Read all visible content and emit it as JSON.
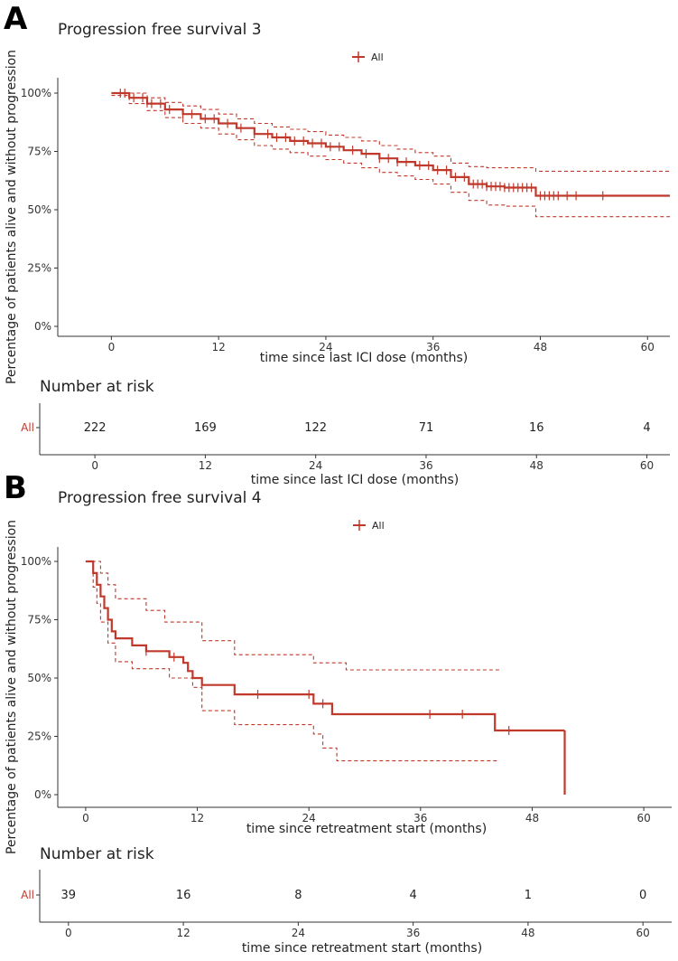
{
  "panels": {
    "a": {
      "letter": "A"
    },
    "b": {
      "letter": "B"
    }
  },
  "colors": {
    "curve": "#c0392b",
    "axis": "#333333"
  },
  "chart_data": [
    {
      "type": "line",
      "panel": "A",
      "title": "Progression free survival 3",
      "legend": [
        "All"
      ],
      "xlabel": "time since last ICI dose (months)",
      "ylabel": "Percentage of patients alive and without progression",
      "xlim": [
        -6,
        62.5
      ],
      "ylim": [
        0,
        1
      ],
      "xticks": [
        0,
        12,
        24,
        36,
        48,
        60
      ],
      "yticks": [
        0,
        0.25,
        0.5,
        0.75,
        1.0
      ],
      "ytick_labels": [
        "0%",
        "25%",
        "50%",
        "75%",
        "100%"
      ],
      "series": [
        {
          "name": "All",
          "role": "estimate",
          "x": [
            0,
            2,
            4,
            6,
            8,
            10,
            12,
            14,
            16,
            18,
            20,
            22,
            24,
            26,
            28,
            30,
            32,
            34,
            36,
            38,
            40,
            42,
            44,
            46,
            47.5,
            50,
            55,
            62.5
          ],
          "y": [
            1.0,
            0.98,
            0.955,
            0.93,
            0.91,
            0.89,
            0.87,
            0.85,
            0.825,
            0.81,
            0.795,
            0.785,
            0.77,
            0.755,
            0.74,
            0.72,
            0.705,
            0.69,
            0.67,
            0.64,
            0.61,
            0.6,
            0.595,
            0.595,
            0.56,
            0.56,
            0.56,
            0.56
          ]
        },
        {
          "name": "All upper 95% CI",
          "role": "upper",
          "x": [
            0,
            2,
            4,
            6,
            8,
            10,
            12,
            14,
            16,
            18,
            20,
            22,
            24,
            26,
            28,
            30,
            32,
            34,
            36,
            38,
            40,
            42,
            44,
            46,
            47.5,
            50,
            55,
            62.5
          ],
          "y": [
            1.0,
            1.0,
            0.98,
            0.96,
            0.945,
            0.93,
            0.91,
            0.89,
            0.87,
            0.855,
            0.845,
            0.835,
            0.82,
            0.81,
            0.795,
            0.775,
            0.76,
            0.745,
            0.73,
            0.7,
            0.685,
            0.68,
            0.68,
            0.68,
            0.665,
            0.665,
            0.665,
            0.665
          ]
        },
        {
          "name": "All lower 95% CI",
          "role": "lower",
          "x": [
            0,
            2,
            4,
            6,
            8,
            10,
            12,
            14,
            16,
            18,
            20,
            22,
            24,
            26,
            28,
            30,
            32,
            34,
            36,
            38,
            40,
            42,
            44,
            46,
            47.5,
            50,
            55,
            62.5
          ],
          "y": [
            0.99,
            0.955,
            0.925,
            0.895,
            0.87,
            0.85,
            0.825,
            0.8,
            0.775,
            0.76,
            0.745,
            0.73,
            0.715,
            0.7,
            0.68,
            0.66,
            0.645,
            0.63,
            0.61,
            0.575,
            0.54,
            0.52,
            0.515,
            0.515,
            0.47,
            0.47,
            0.47,
            0.47
          ]
        }
      ],
      "censor_times": [
        1,
        1.5,
        2.5,
        3.5,
        4.5,
        5.5,
        6.5,
        8,
        9,
        10.5,
        11.5,
        13,
        14.5,
        16,
        17.5,
        18.5,
        19.5,
        20.5,
        21.5,
        22.5,
        23.5,
        24.5,
        25.5,
        27,
        28.5,
        30,
        31,
        32,
        33,
        34.5,
        35.5,
        36.5,
        37.5,
        38.5,
        39.5,
        40.5,
        41,
        41.5,
        42,
        42.5,
        43,
        43.5,
        44,
        44.5,
        45,
        45.5,
        46,
        46.5,
        47,
        48,
        48.5,
        49,
        49.5,
        50,
        51,
        52,
        55
      ],
      "risk_table": {
        "title": "Number at risk",
        "strata": [
          "All"
        ],
        "times": [
          0,
          12,
          24,
          36,
          48,
          60
        ],
        "counts": [
          222,
          169,
          122,
          71,
          16,
          4
        ],
        "xlabel": "time since last ICI dose (months)"
      }
    },
    {
      "type": "line",
      "panel": "B",
      "title": "Progression free survival 4",
      "legend": [
        "All"
      ],
      "xlabel": "time since retreatment start (months)",
      "ylabel": "Percentage of patients alive and without progression",
      "xlim": [
        -3,
        63
      ],
      "ylim": [
        0,
        1
      ],
      "xticks": [
        0,
        12,
        24,
        36,
        48,
        60
      ],
      "yticks": [
        0,
        0.25,
        0.5,
        0.75,
        1.0
      ],
      "ytick_labels": [
        "0%",
        "25%",
        "50%",
        "75%",
        "100%"
      ],
      "series": [
        {
          "name": "All",
          "role": "estimate",
          "x": [
            0,
            0.8,
            1.2,
            1.6,
            2.0,
            2.4,
            2.8,
            3.2,
            5.0,
            6.5,
            9.0,
            10.5,
            11.0,
            11.5,
            12.5,
            16.0,
            24.5,
            26.5,
            27.0,
            44.0,
            51.5
          ],
          "y": [
            1.0,
            0.95,
            0.9,
            0.85,
            0.8,
            0.75,
            0.7,
            0.67,
            0.64,
            0.615,
            0.59,
            0.565,
            0.53,
            0.5,
            0.47,
            0.43,
            0.39,
            0.345,
            0.345,
            0.275,
            0.275
          ]
        },
        {
          "name": "All upper 95% CI",
          "role": "upper",
          "x": [
            0,
            1.2,
            1.6,
            2.4,
            3.2,
            6.5,
            8.5,
            12.5,
            16.0,
            24.5,
            28.0,
            44.5
          ],
          "y": [
            1.0,
            1.0,
            0.95,
            0.9,
            0.84,
            0.79,
            0.74,
            0.66,
            0.6,
            0.565,
            0.535,
            0.535
          ]
        },
        {
          "name": "All lower 95% CI",
          "role": "lower",
          "x": [
            0,
            0.8,
            1.2,
            1.6,
            2.4,
            3.2,
            5.0,
            9.0,
            11.5,
            12.5,
            16.0,
            24.5,
            25.5,
            27.0,
            44.5
          ],
          "y": [
            1.0,
            0.89,
            0.82,
            0.74,
            0.65,
            0.57,
            0.54,
            0.5,
            0.46,
            0.36,
            0.3,
            0.26,
            0.2,
            0.145,
            0.145
          ]
        }
      ],
      "drop": {
        "x": 51.5,
        "y_from": 0.275,
        "y_to": 0.0
      },
      "censor_times": [
        6.5,
        9.5,
        12.5,
        18.5,
        24.0,
        25.5,
        37.0,
        40.5,
        45.5
      ],
      "risk_table": {
        "title": "Number at risk",
        "strata": [
          "All"
        ],
        "times": [
          0,
          12,
          24,
          36,
          48,
          60
        ],
        "counts": [
          39,
          16,
          8,
          4,
          1,
          0
        ],
        "xlabel": "time since retreatment start (months)"
      }
    }
  ]
}
